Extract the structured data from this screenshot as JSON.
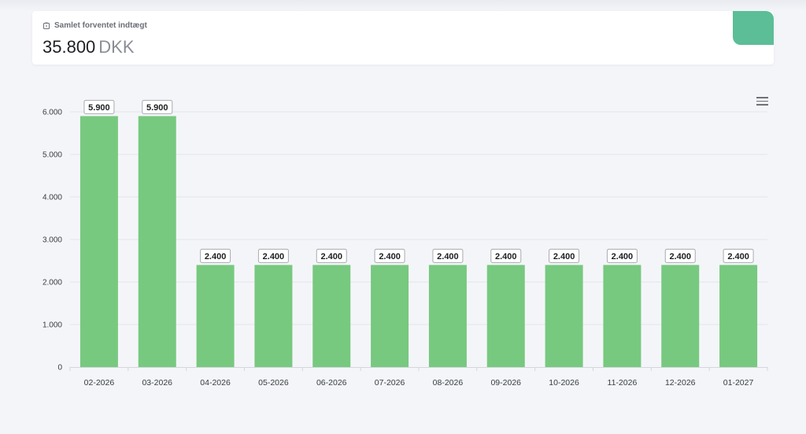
{
  "summary": {
    "label": "Samlet forventet indtægt",
    "amount": "35.800",
    "currency": "DKK",
    "icon": "piggy-bank-icon",
    "accent_color": "#5cbe96"
  },
  "chart_menu": {
    "icon": "hamburger-menu-icon"
  },
  "chart_data": {
    "type": "bar",
    "categories": [
      "02-2026",
      "03-2026",
      "04-2026",
      "05-2026",
      "06-2026",
      "07-2026",
      "08-2026",
      "09-2026",
      "10-2026",
      "11-2026",
      "12-2026",
      "01-2027"
    ],
    "values": [
      5900,
      5900,
      2400,
      2400,
      2400,
      2400,
      2400,
      2400,
      2400,
      2400,
      2400,
      2400
    ],
    "data_labels": [
      "5.900",
      "5.900",
      "2.400",
      "2.400",
      "2.400",
      "2.400",
      "2.400",
      "2.400",
      "2.400",
      "2.400",
      "2.400",
      "2.400"
    ],
    "ylim": [
      0,
      6000
    ],
    "y_ticks": [
      0,
      1000,
      2000,
      3000,
      4000,
      5000,
      6000
    ],
    "y_tick_labels": [
      "0",
      "1.000",
      "2.000",
      "3.000",
      "4.000",
      "5.000",
      "6.000"
    ],
    "grid": true,
    "bar_color": "#77c97f",
    "title": "",
    "xlabel": "",
    "ylabel": ""
  }
}
